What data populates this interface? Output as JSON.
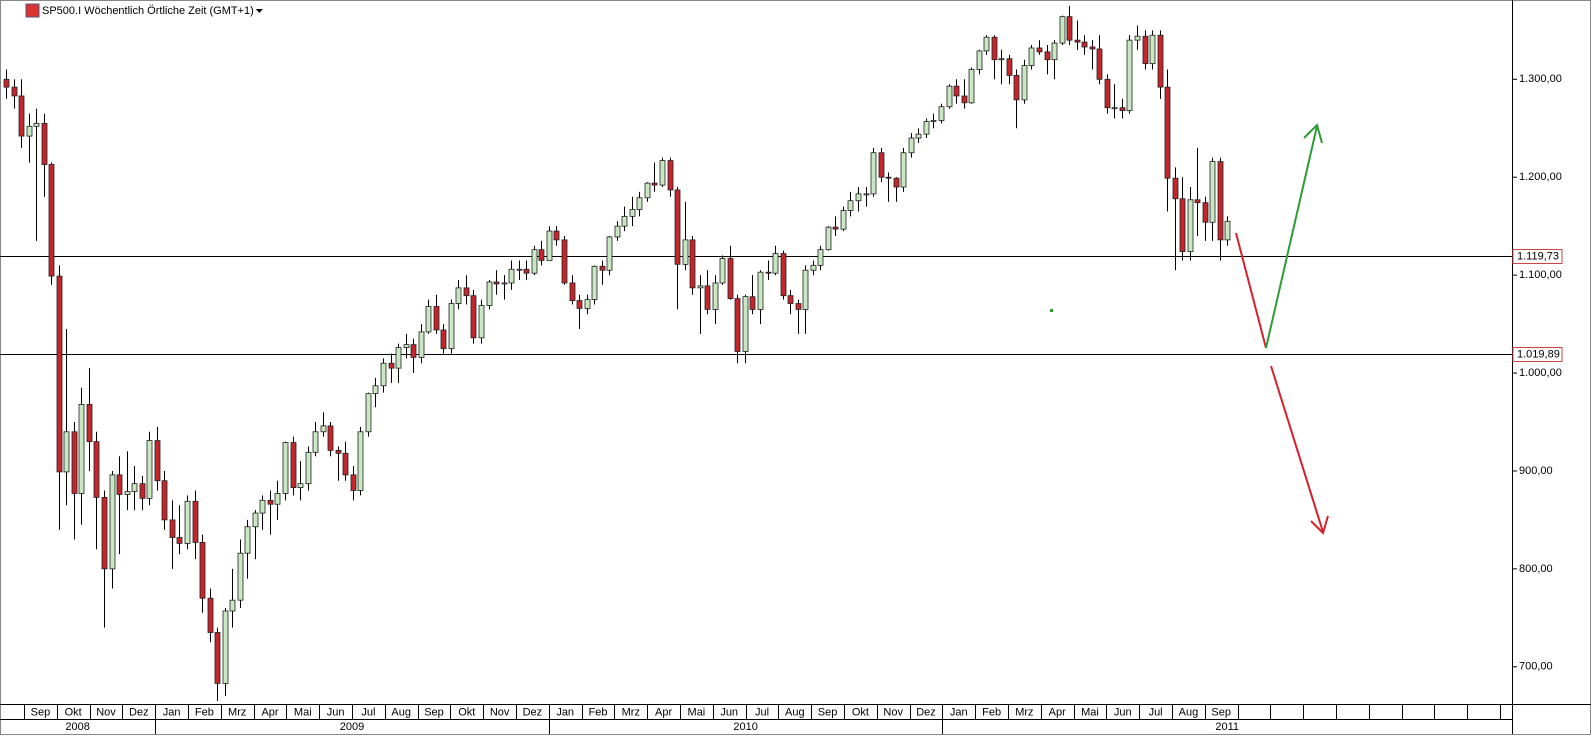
{
  "chart_data": {
    "type": "candlestick",
    "title": "SP500.I Wöchentlich Örtliche Zeit (GMT+1)",
    "up_color": "#c9e8c1",
    "down_color": "#c4262c",
    "ylim": [
      663,
      1381
    ],
    "yticks": [
      {
        "value": 700,
        "label": "700,00"
      },
      {
        "value": 800,
        "label": "800,00"
      },
      {
        "value": 900,
        "label": "900,00"
      },
      {
        "value": 1000,
        "label": "1.000,00"
      },
      {
        "value": 1100,
        "label": "1.100,00"
      },
      {
        "value": 1200,
        "label": "1.200,00"
      },
      {
        "value": 1300,
        "label": "1.300,00"
      }
    ],
    "levels": [
      {
        "value": 1119.73,
        "label": "1.119,73"
      },
      {
        "value": 1019.89,
        "label": "1.019,89"
      }
    ],
    "months": [
      "Sep",
      "Okt",
      "Nov",
      "Dez",
      "Jan",
      "Feb",
      "Mrz",
      "Apr",
      "Mai",
      "Jun",
      "Jul",
      "Aug",
      "Sep",
      "Okt",
      "Nov",
      "Dez",
      "Jan",
      "Feb",
      "Mrz",
      "Apr",
      "Mai",
      "Jun",
      "Jul",
      "Aug",
      "Sep",
      "Okt",
      "Nov",
      "Dez",
      "Jan",
      "Feb",
      "Mrz",
      "Apr",
      "Mai",
      "Jun",
      "Jul",
      "Aug",
      "Sep"
    ],
    "years": [
      "2008",
      "2009",
      "2010",
      "2011"
    ],
    "open": [
      1300,
      1292,
      1283,
      1242,
      1252,
      1255,
      1213,
      1099,
      899,
      940,
      877,
      968,
      930,
      873,
      800,
      896,
      876,
      879,
      887,
      872,
      931,
      890,
      850,
      832,
      826,
      869,
      827,
      770,
      735,
      683,
      757,
      768,
      816,
      843,
      857,
      870,
      866,
      877,
      929,
      883,
      887,
      919,
      940,
      946,
      921,
      918,
      896,
      880,
      940,
      979,
      987,
      1010,
      1005,
      1026,
      1029,
      1016,
      1042,
      1068,
      1044,
      1025,
      1071,
      1087,
      1079,
      1036,
      1069,
      1093,
      1091,
      1092,
      1106,
      1106,
      1102,
      1126,
      1115,
      1145,
      1136,
      1092,
      1074,
      1066,
      1075,
      1109,
      1105,
      1139,
      1150,
      1160,
      1167,
      1179,
      1194,
      1192,
      1217,
      1187,
      1111,
      1136,
      1087,
      1089,
      1065,
      1092,
      1117,
      1076,
      1022,
      1078,
      1065,
      1103,
      1102,
      1122,
      1079,
      1071,
      1065,
      1105,
      1110,
      1126,
      1149,
      1147,
      1166,
      1176,
      1183,
      1183,
      1225,
      1200,
      1199,
      1190,
      1225,
      1240,
      1244,
      1257,
      1258,
      1272,
      1293,
      1283,
      1276,
      1310,
      1329,
      1343,
      1320,
      1321,
      1304,
      1279,
      1314,
      1332,
      1328,
      1320,
      1337,
      1364,
      1340,
      1338,
      1333,
      1331,
      1300,
      1271,
      1271,
      1268,
      1340,
      1344,
      1316,
      1345,
      1292,
      1199,
      1178,
      1124,
      1177,
      1174,
      1154,
      1216,
      1136
    ],
    "high": [
      1310,
      1300,
      1300,
      1265,
      1270,
      1265,
      1215,
      1110,
      1045,
      950,
      985,
      1005,
      940,
      880,
      900,
      915,
      920,
      905,
      895,
      940,
      945,
      900,
      870,
      865,
      875,
      880,
      835,
      780,
      740,
      760,
      800,
      830,
      850,
      860,
      875,
      880,
      890,
      930,
      935,
      910,
      925,
      950,
      960,
      950,
      925,
      930,
      905,
      945,
      980,
      995,
      1015,
      1020,
      1030,
      1040,
      1035,
      1050,
      1075,
      1080,
      1050,
      1075,
      1095,
      1100,
      1085,
      1075,
      1095,
      1105,
      1100,
      1115,
      1115,
      1115,
      1130,
      1135,
      1150,
      1150,
      1140,
      1100,
      1080,
      1080,
      1110,
      1115,
      1140,
      1155,
      1170,
      1180,
      1185,
      1195,
      1215,
      1220,
      1220,
      1190,
      1175,
      1140,
      1100,
      1105,
      1100,
      1120,
      1130,
      1080,
      1080,
      1100,
      1105,
      1115,
      1130,
      1125,
      1085,
      1075,
      1110,
      1115,
      1130,
      1150,
      1160,
      1170,
      1185,
      1190,
      1190,
      1230,
      1230,
      1205,
      1200,
      1230,
      1245,
      1250,
      1260,
      1265,
      1275,
      1295,
      1300,
      1300,
      1312,
      1330,
      1345,
      1345,
      1330,
      1325,
      1310,
      1320,
      1335,
      1340,
      1335,
      1340,
      1365,
      1375,
      1360,
      1345,
      1340,
      1345,
      1305,
      1295,
      1280,
      1345,
      1355,
      1350,
      1350,
      1350,
      1310,
      1210,
      1200,
      1190,
      1230,
      1180,
      1220,
      1220,
      1160
    ],
    "low": [
      1280,
      1270,
      1230,
      1215,
      1135,
      1180,
      1090,
      840,
      865,
      830,
      845,
      900,
      820,
      740,
      780,
      815,
      860,
      860,
      860,
      865,
      880,
      840,
      800,
      815,
      820,
      810,
      755,
      725,
      665,
      670,
      740,
      760,
      790,
      810,
      840,
      835,
      850,
      870,
      875,
      870,
      880,
      915,
      935,
      915,
      890,
      890,
      870,
      875,
      935,
      965,
      980,
      990,
      990,
      1015,
      1000,
      1010,
      1040,
      1040,
      1020,
      1020,
      1065,
      1070,
      1030,
      1030,
      1065,
      1080,
      1075,
      1085,
      1095,
      1095,
      1100,
      1110,
      1115,
      1130,
      1090,
      1070,
      1045,
      1060,
      1070,
      1090,
      1100,
      1135,
      1145,
      1150,
      1160,
      1175,
      1185,
      1190,
      1180,
      1065,
      1105,
      1080,
      1040,
      1060,
      1050,
      1090,
      1075,
      1010,
      1010,
      1060,
      1050,
      1095,
      1100,
      1075,
      1060,
      1040,
      1040,
      1100,
      1105,
      1125,
      1140,
      1145,
      1160,
      1165,
      1170,
      1180,
      1195,
      1175,
      1175,
      1185,
      1220,
      1235,
      1240,
      1250,
      1255,
      1270,
      1275,
      1270,
      1275,
      1305,
      1325,
      1300,
      1295,
      1295,
      1250,
      1275,
      1310,
      1325,
      1305,
      1300,
      1335,
      1335,
      1330,
      1325,
      1310,
      1295,
      1265,
      1260,
      1260,
      1265,
      1330,
      1310,
      1310,
      1280,
      1165,
      1105,
      1115,
      1115,
      1140,
      1135,
      1135,
      1115,
      1130
    ],
    "close": [
      1292,
      1283,
      1242,
      1252,
      1255,
      1213,
      1099,
      899,
      940,
      877,
      968,
      930,
      873,
      800,
      896,
      876,
      879,
      887,
      872,
      931,
      890,
      850,
      832,
      826,
      869,
      827,
      770,
      735,
      683,
      757,
      768,
      816,
      843,
      857,
      870,
      866,
      877,
      929,
      883,
      887,
      919,
      940,
      946,
      921,
      918,
      896,
      880,
      940,
      979,
      987,
      1010,
      1005,
      1026,
      1029,
      1016,
      1042,
      1068,
      1044,
      1025,
      1071,
      1087,
      1079,
      1036,
      1069,
      1093,
      1091,
      1092,
      1106,
      1106,
      1102,
      1126,
      1115,
      1145,
      1136,
      1092,
      1074,
      1066,
      1075,
      1109,
      1105,
      1139,
      1150,
      1160,
      1167,
      1179,
      1194,
      1192,
      1217,
      1187,
      1111,
      1136,
      1087,
      1089,
      1065,
      1092,
      1117,
      1076,
      1022,
      1078,
      1065,
      1103,
      1102,
      1122,
      1079,
      1071,
      1065,
      1105,
      1110,
      1126,
      1149,
      1147,
      1166,
      1176,
      1183,
      1183,
      1225,
      1200,
      1199,
      1190,
      1225,
      1240,
      1244,
      1257,
      1258,
      1272,
      1293,
      1283,
      1276,
      1310,
      1329,
      1343,
      1320,
      1321,
      1304,
      1279,
      1314,
      1332,
      1328,
      1320,
      1337,
      1364,
      1340,
      1338,
      1333,
      1331,
      1300,
      1271,
      1271,
      1268,
      1340,
      1344,
      1316,
      1345,
      1292,
      1199,
      1178,
      1124,
      1177,
      1174,
      1154,
      1216,
      1136,
      1155
    ]
  }
}
